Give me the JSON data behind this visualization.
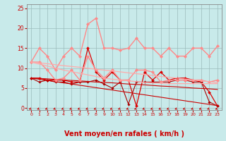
{
  "x": [
    0,
    1,
    2,
    3,
    4,
    5,
    6,
    7,
    8,
    9,
    10,
    11,
    12,
    13,
    14,
    15,
    16,
    17,
    18,
    19,
    20,
    21,
    22,
    23
  ],
  "series": [
    {
      "name": "line_dark_spiky1",
      "color": "#dd0000",
      "lw": 0.9,
      "marker": "D",
      "ms": 2.0,
      "y": [
        7.5,
        7.5,
        7.0,
        7.0,
        7.0,
        6.5,
        6.5,
        15.0,
        9.0,
        7.0,
        9.0,
        7.0,
        7.0,
        0.5,
        9.0,
        7.0,
        9.0,
        7.0,
        7.5,
        7.5,
        7.0,
        6.5,
        4.0,
        0.5
      ]
    },
    {
      "name": "line_dark_lower",
      "color": "#aa0000",
      "lw": 0.8,
      "marker": "D",
      "ms": 1.8,
      "y": [
        7.5,
        6.5,
        7.0,
        6.5,
        6.5,
        6.0,
        6.5,
        6.5,
        7.0,
        6.0,
        5.0,
        6.5,
        1.0,
        6.5,
        6.5,
        6.5,
        6.5,
        6.5,
        7.0,
        7.0,
        6.5,
        6.5,
        1.5,
        0.5
      ]
    },
    {
      "name": "line_dark_trend1",
      "color": "#cc0000",
      "lw": 0.8,
      "marker": null,
      "ms": 0,
      "y": [
        7.5,
        7.4,
        7.3,
        7.15,
        7.0,
        6.9,
        6.8,
        6.65,
        6.5,
        6.4,
        6.3,
        6.15,
        6.0,
        5.9,
        5.8,
        5.65,
        5.5,
        5.4,
        5.3,
        5.15,
        5.0,
        4.9,
        4.8,
        4.65
      ]
    },
    {
      "name": "line_dark_trend2",
      "color": "#cc0000",
      "lw": 0.8,
      "marker": null,
      "ms": 0,
      "y": [
        7.5,
        7.2,
        6.9,
        6.6,
        6.3,
        6.0,
        5.7,
        5.4,
        5.1,
        4.8,
        4.5,
        4.2,
        3.9,
        3.6,
        3.3,
        3.0,
        2.7,
        2.4,
        2.1,
        1.8,
        1.5,
        1.2,
        0.9,
        0.6
      ]
    },
    {
      "name": "line_light_upper",
      "color": "#ff8888",
      "lw": 1.0,
      "marker": "D",
      "ms": 2.2,
      "y": [
        11.5,
        15.0,
        13.0,
        9.5,
        13.0,
        15.0,
        13.0,
        21.0,
        22.5,
        15.0,
        15.0,
        14.5,
        15.0,
        17.5,
        15.0,
        15.0,
        13.0,
        15.0,
        13.0,
        13.0,
        15.0,
        15.0,
        13.0,
        15.5
      ]
    },
    {
      "name": "line_light_mid",
      "color": "#ff8888",
      "lw": 1.0,
      "marker": "D",
      "ms": 2.2,
      "y": [
        11.5,
        11.5,
        9.5,
        7.0,
        7.5,
        9.5,
        7.0,
        13.0,
        9.5,
        7.5,
        9.5,
        7.0,
        7.0,
        9.5,
        9.5,
        9.0,
        6.5,
        7.0,
        7.0,
        7.0,
        7.0,
        7.0,
        6.5,
        7.0
      ]
    },
    {
      "name": "line_light_trend1",
      "color": "#ffaaaa",
      "lw": 0.9,
      "marker": null,
      "ms": 0,
      "y": [
        11.5,
        11.3,
        11.1,
        10.85,
        10.6,
        10.4,
        10.2,
        9.95,
        9.7,
        9.5,
        9.3,
        9.05,
        8.8,
        8.6,
        8.4,
        8.15,
        7.9,
        7.7,
        7.5,
        7.25,
        7.0,
        6.8,
        6.6,
        6.35
      ]
    },
    {
      "name": "line_light_trend2",
      "color": "#ffaaaa",
      "lw": 0.9,
      "marker": null,
      "ms": 0,
      "y": [
        11.5,
        11.0,
        10.5,
        10.0,
        9.5,
        9.1,
        8.7,
        8.3,
        7.9,
        7.5,
        7.2,
        7.0,
        6.8,
        6.6,
        6.4,
        6.3,
        6.2,
        6.1,
        6.1,
        6.1,
        6.1,
        6.1,
        6.1,
        6.1
      ]
    }
  ],
  "xlabel": "Vent moyen/en rafales ( km/h )",
  "xlabel_color": "#cc0000",
  "xlabel_fontsize": 7,
  "bg_color": "#c8eaea",
  "grid_color": "#9bbcbc",
  "tick_color": "#cc0000",
  "spine_color": "#888888",
  "ylim": [
    -0.5,
    26
  ],
  "xlim": [
    -0.5,
    23.5
  ],
  "yticks": [
    0,
    5,
    10,
    15,
    20,
    25
  ],
  "xticks": [
    0,
    1,
    2,
    3,
    4,
    5,
    6,
    7,
    8,
    9,
    10,
    11,
    12,
    13,
    14,
    15,
    16,
    17,
    18,
    19,
    20,
    21,
    22,
    23
  ]
}
